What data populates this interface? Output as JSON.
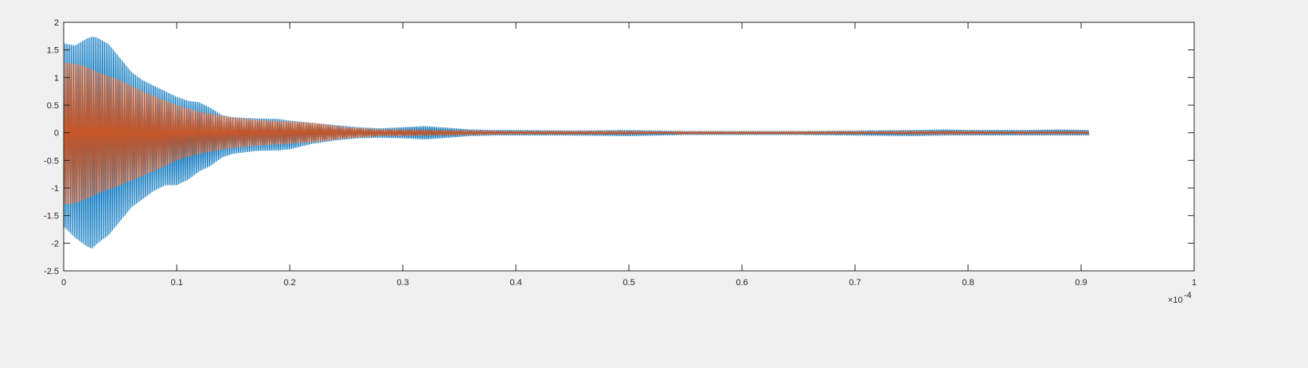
{
  "chart_data": {
    "type": "line",
    "title": "",
    "xlabel": "",
    "ylabel": "",
    "x_exponent_label": "×10",
    "x_exponent": "-4",
    "xlim": [
      0,
      1
    ],
    "ylim": [
      -2.5,
      2
    ],
    "x_scale_factor": 0.0001,
    "grid": false,
    "legend": "none",
    "x_ticks": [
      {
        "value": 0,
        "label": "0"
      },
      {
        "value": 0.1,
        "label": "0.1"
      },
      {
        "value": 0.2,
        "label": "0.2"
      },
      {
        "value": 0.3,
        "label": "0.3"
      },
      {
        "value": 0.4,
        "label": "0.4"
      },
      {
        "value": 0.5,
        "label": "0.5"
      },
      {
        "value": 0.6,
        "label": "0.6"
      },
      {
        "value": 0.7,
        "label": "0.7"
      },
      {
        "value": 0.8,
        "label": "0.8"
      },
      {
        "value": 0.9,
        "label": "0.9"
      },
      {
        "value": 1,
        "label": "1"
      }
    ],
    "y_ticks": [
      {
        "value": 2,
        "label": "2"
      },
      {
        "value": 1.5,
        "label": "1.5"
      },
      {
        "value": 1,
        "label": "1"
      },
      {
        "value": 0.5,
        "label": "0.5"
      },
      {
        "value": 0,
        "label": "0"
      },
      {
        "value": -0.5,
        "label": "-0.5"
      },
      {
        "value": -1,
        "label": "-1"
      },
      {
        "value": -1.5,
        "label": "-1.5"
      },
      {
        "value": -2,
        "label": "-2"
      },
      {
        "value": -2.5,
        "label": "-2.5"
      }
    ],
    "series": [
      {
        "color": "#0072bd",
        "x_end": 0.907,
        "envelope": {
          "x": [
            0,
            0.005,
            0.01,
            0.02,
            0.025,
            0.03,
            0.04,
            0.05,
            0.06,
            0.07,
            0.08,
            0.09,
            0.1,
            0.11,
            0.12,
            0.13,
            0.14,
            0.15,
            0.17,
            0.19,
            0.2,
            0.21,
            0.22,
            0.24,
            0.26,
            0.28,
            0.3,
            0.32,
            0.34,
            0.36,
            0.38,
            0.4,
            0.45,
            0.5,
            0.55,
            0.6,
            0.65,
            0.7,
            0.75,
            0.78,
            0.8,
            0.85,
            0.88,
            0.907
          ],
          "upper": [
            1.62,
            1.6,
            1.58,
            1.7,
            1.74,
            1.72,
            1.6,
            1.35,
            1.1,
            0.95,
            0.85,
            0.75,
            0.65,
            0.58,
            0.55,
            0.45,
            0.32,
            0.28,
            0.26,
            0.25,
            0.22,
            0.2,
            0.18,
            0.14,
            0.1,
            0.08,
            0.1,
            0.12,
            0.09,
            0.06,
            0.05,
            0.05,
            0.04,
            0.05,
            0.03,
            0.03,
            0.03,
            0.04,
            0.05,
            0.06,
            0.05,
            0.05,
            0.06,
            0.05
          ],
          "lower": [
            -1.7,
            -1.8,
            -1.9,
            -2.05,
            -2.1,
            -2.0,
            -1.85,
            -1.6,
            -1.35,
            -1.2,
            -1.05,
            -0.95,
            -0.95,
            -0.85,
            -0.7,
            -0.6,
            -0.45,
            -0.38,
            -0.33,
            -0.32,
            -0.3,
            -0.25,
            -0.2,
            -0.14,
            -0.1,
            -0.09,
            -0.1,
            -0.12,
            -0.09,
            -0.06,
            -0.05,
            -0.05,
            -0.05,
            -0.06,
            -0.04,
            -0.04,
            -0.04,
            -0.05,
            -0.06,
            -0.05,
            -0.05,
            -0.05,
            -0.05,
            -0.05
          ]
        }
      },
      {
        "color": "#d95319",
        "x_end": 0.907,
        "envelope": {
          "x": [
            0,
            0.01,
            0.02,
            0.03,
            0.05,
            0.07,
            0.09,
            0.1,
            0.12,
            0.15,
            0.18,
            0.2,
            0.22,
            0.25,
            0.28,
            0.3,
            0.33,
            0.36,
            0.4,
            0.45,
            0.5,
            0.55,
            0.6,
            0.65,
            0.7,
            0.75,
            0.8,
            0.85,
            0.907
          ],
          "upper": [
            1.27,
            1.25,
            1.2,
            1.1,
            0.95,
            0.75,
            0.58,
            0.5,
            0.38,
            0.27,
            0.22,
            0.2,
            0.18,
            0.1,
            0.06,
            0.06,
            0.05,
            0.04,
            0.03,
            0.03,
            0.03,
            0.02,
            0.02,
            0.02,
            0.02,
            0.03,
            0.03,
            0.02,
            0.02
          ],
          "lower": [
            -1.3,
            -1.28,
            -1.2,
            -1.1,
            -0.95,
            -0.78,
            -0.6,
            -0.5,
            -0.38,
            -0.27,
            -0.22,
            -0.2,
            -0.17,
            -0.1,
            -0.06,
            -0.06,
            -0.05,
            -0.04,
            -0.03,
            -0.03,
            -0.03,
            -0.02,
            -0.02,
            -0.02,
            -0.02,
            -0.03,
            -0.03,
            -0.02,
            -0.02
          ]
        }
      }
    ]
  }
}
